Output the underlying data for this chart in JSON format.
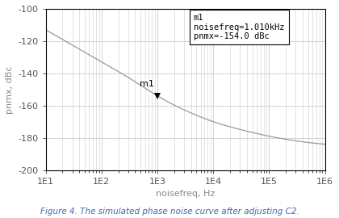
{
  "title": "",
  "xlabel": "noisefreq, Hz",
  "ylabel": "pnmx, dBc",
  "caption": "Figure 4. The simulated phase noise curve after adjusting C2.",
  "xlim_log": [
    1,
    6
  ],
  "ylim": [
    -200,
    -100
  ],
  "yticks": [
    -200,
    -180,
    -160,
    -140,
    -120,
    -100
  ],
  "curve_color": "#999999",
  "background_color": "#ffffff",
  "marker_freq": 1010,
  "marker_val": -154.0,
  "annotation_text": "m1\nnoisefreq=1.010kHz\npnmx=-154.0 dBc",
  "marker_label": "m1",
  "caption_color": "#4466aa",
  "grid_color": "#cccccc",
  "spine_color": "#000000",
  "tick_color": "#555555",
  "label_color": "#888888",
  "curve_pts_x": [
    1.0,
    1.5,
    2.0,
    2.5,
    3.0,
    3.5,
    4.0,
    4.5,
    5.0,
    5.5,
    6.0
  ],
  "curve_pts_y": [
    -113,
    -123,
    -133,
    -143,
    -154,
    -163,
    -170,
    -175,
    -179,
    -182,
    -184
  ]
}
